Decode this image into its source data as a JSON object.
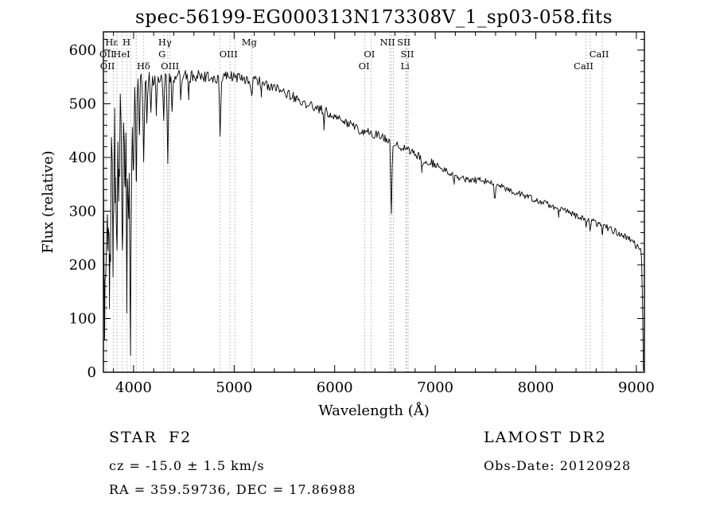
{
  "window": {
    "background": "#ffffff",
    "foreground": "#000000"
  },
  "chart_data": {
    "type": "line",
    "title": "spec-56199-EG000313N173308V_1_sp03-058.fits",
    "xlabel": "Wavelength (Å)",
    "ylabel": "Flux (relative)",
    "xlim": [
      3700,
      9080
    ],
    "ylim": [
      0,
      634
    ],
    "xticks": [
      4000,
      5000,
      6000,
      7000,
      8000,
      9000
    ],
    "x_minor_step": 200,
    "yticks": [
      0,
      100,
      200,
      300,
      400,
      500,
      600
    ],
    "y_minor_step": 20,
    "grid": false,
    "legend": "none",
    "line_color": "#000000",
    "marker_color": "#999999",
    "spectral_line_markers": [
      3727,
      3798,
      3835,
      3889,
      3933,
      3970,
      4026,
      4101,
      4300,
      4340,
      4363,
      4861,
      4959,
      5007,
      5175,
      6300,
      6364,
      6548,
      6563,
      6583,
      6708,
      6716,
      6731,
      8498,
      8542,
      8662
    ],
    "line_labels": [
      {
        "text": "Hε",
        "at": 3782,
        "row": 0
      },
      {
        "text": "H",
        "at": 3930,
        "row": 0
      },
      {
        "text": "Hγ",
        "at": 4312,
        "row": 0
      },
      {
        "text": "Mg",
        "at": 5150,
        "row": 0
      },
      {
        "text": "NII",
        "at": 6525,
        "row": 0
      },
      {
        "text": "SII",
        "at": 6688,
        "row": 0
      },
      {
        "text": "OII",
        "at": 3734,
        "row": 1
      },
      {
        "text": "HeI",
        "at": 3882,
        "row": 1
      },
      {
        "text": "G",
        "at": 4283,
        "row": 1
      },
      {
        "text": "OIII",
        "at": 4944,
        "row": 1
      },
      {
        "text": "OI",
        "at": 6345,
        "row": 1
      },
      {
        "text": "SII",
        "at": 6722,
        "row": 1
      },
      {
        "text": "CaII",
        "at": 8630,
        "row": 1
      },
      {
        "text": "OII",
        "at": 3740,
        "row": 2
      },
      {
        "text": "Hδ",
        "at": 4098,
        "row": 2
      },
      {
        "text": "OIII",
        "at": 4362,
        "row": 2
      },
      {
        "text": "OI",
        "at": 6292,
        "row": 2
      },
      {
        "text": "Li",
        "at": 6700,
        "row": 2
      },
      {
        "text": "CaII",
        "at": 8475,
        "row": 2
      }
    ],
    "continuum_anchors": [
      [
        3700,
        330
      ],
      [
        3720,
        400
      ],
      [
        3740,
        450
      ],
      [
        3760,
        470
      ],
      [
        3780,
        490
      ],
      [
        3800,
        505
      ],
      [
        3830,
        515
      ],
      [
        3860,
        520
      ],
      [
        3900,
        525
      ],
      [
        3940,
        520
      ],
      [
        3980,
        530
      ],
      [
        4010,
        545
      ],
      [
        4060,
        550
      ],
      [
        4150,
        548
      ],
      [
        4250,
        552
      ],
      [
        4350,
        548
      ],
      [
        4450,
        553
      ],
      [
        4550,
        549
      ],
      [
        4650,
        553
      ],
      [
        4750,
        549
      ],
      [
        4850,
        547
      ],
      [
        4950,
        551
      ],
      [
        5050,
        549
      ],
      [
        5150,
        545
      ],
      [
        5250,
        541
      ],
      [
        5350,
        534
      ],
      [
        5450,
        526
      ],
      [
        5550,
        516
      ],
      [
        5650,
        507
      ],
      [
        5750,
        497
      ],
      [
        5850,
        491
      ],
      [
        5950,
        481
      ],
      [
        6050,
        471
      ],
      [
        6150,
        462
      ],
      [
        6250,
        452
      ],
      [
        6350,
        446
      ],
      [
        6450,
        440
      ],
      [
        6550,
        432
      ],
      [
        6650,
        421
      ],
      [
        6750,
        411
      ],
      [
        6850,
        401
      ],
      [
        6950,
        391
      ],
      [
        7050,
        381
      ],
      [
        7150,
        371
      ],
      [
        7250,
        362
      ],
      [
        7350,
        358
      ],
      [
        7450,
        357
      ],
      [
        7550,
        354
      ],
      [
        7650,
        347
      ],
      [
        7750,
        339
      ],
      [
        7850,
        331
      ],
      [
        7950,
        324
      ],
      [
        8050,
        317
      ],
      [
        8150,
        310
      ],
      [
        8250,
        303
      ],
      [
        8350,
        296
      ],
      [
        8450,
        289
      ],
      [
        8550,
        282
      ],
      [
        8650,
        274
      ],
      [
        8750,
        266
      ],
      [
        8850,
        256
      ],
      [
        8950,
        244
      ],
      [
        9020,
        232
      ],
      [
        9050,
        224
      ],
      [
        9062,
        120
      ],
      [
        9070,
        5
      ]
    ],
    "absorption_lines": [
      [
        3712,
        260,
        5
      ],
      [
        3727,
        210,
        5
      ],
      [
        3745,
        250,
        5
      ],
      [
        3760,
        300,
        5
      ],
      [
        3771,
        210,
        5
      ],
      [
        3798,
        290,
        6
      ],
      [
        3819,
        180,
        5
      ],
      [
        3835,
        330,
        6
      ],
      [
        3856,
        200,
        5
      ],
      [
        3889,
        340,
        6
      ],
      [
        3912,
        190,
        5
      ],
      [
        3933,
        390,
        6
      ],
      [
        3952,
        210,
        5
      ],
      [
        3970,
        430,
        7
      ],
      [
        4000,
        160,
        5
      ],
      [
        4026,
        190,
        5
      ],
      [
        4058,
        120,
        5
      ],
      [
        4101,
        165,
        6
      ],
      [
        4132,
        70,
        5
      ],
      [
        4172,
        55,
        5
      ],
      [
        4226,
        65,
        5
      ],
      [
        4300,
        70,
        6
      ],
      [
        4340,
        150,
        6
      ],
      [
        4383,
        65,
        5
      ],
      [
        4471,
        45,
        5
      ],
      [
        4550,
        35,
        5
      ],
      [
        4861,
        112,
        6
      ],
      [
        5175,
        28,
        7
      ],
      [
        5270,
        20,
        6
      ],
      [
        5893,
        30,
        6
      ],
      [
        6563,
        140,
        6
      ],
      [
        6867,
        22,
        6
      ],
      [
        7186,
        15,
        6
      ],
      [
        7594,
        28,
        8
      ],
      [
        8229,
        12,
        6
      ],
      [
        8498,
        14,
        5
      ],
      [
        8542,
        18,
        5
      ],
      [
        8662,
        16,
        5
      ]
    ],
    "noise_regions": [
      [
        3700,
        3765,
        60
      ],
      [
        3765,
        4010,
        72
      ],
      [
        4010,
        4200,
        17
      ],
      [
        4200,
        4700,
        12
      ],
      [
        4700,
        5400,
        10
      ],
      [
        5400,
        6300,
        9
      ],
      [
        6300,
        7000,
        8
      ],
      [
        7000,
        7600,
        6
      ],
      [
        7600,
        8600,
        6
      ],
      [
        8600,
        9012,
        7
      ],
      [
        9012,
        9080,
        6
      ]
    ],
    "noise_seed": 20120928,
    "sample_step": 8
  },
  "annotations": {
    "object_class": "STAR",
    "subclass": "F2",
    "survey": "LAMOST DR2",
    "cz": "cz = -15.0 ± 1.5 km/s",
    "obs_date": "Obs-Date: 20120928",
    "ra_dec": "RA = 359.59736, DEC = 17.86988"
  }
}
